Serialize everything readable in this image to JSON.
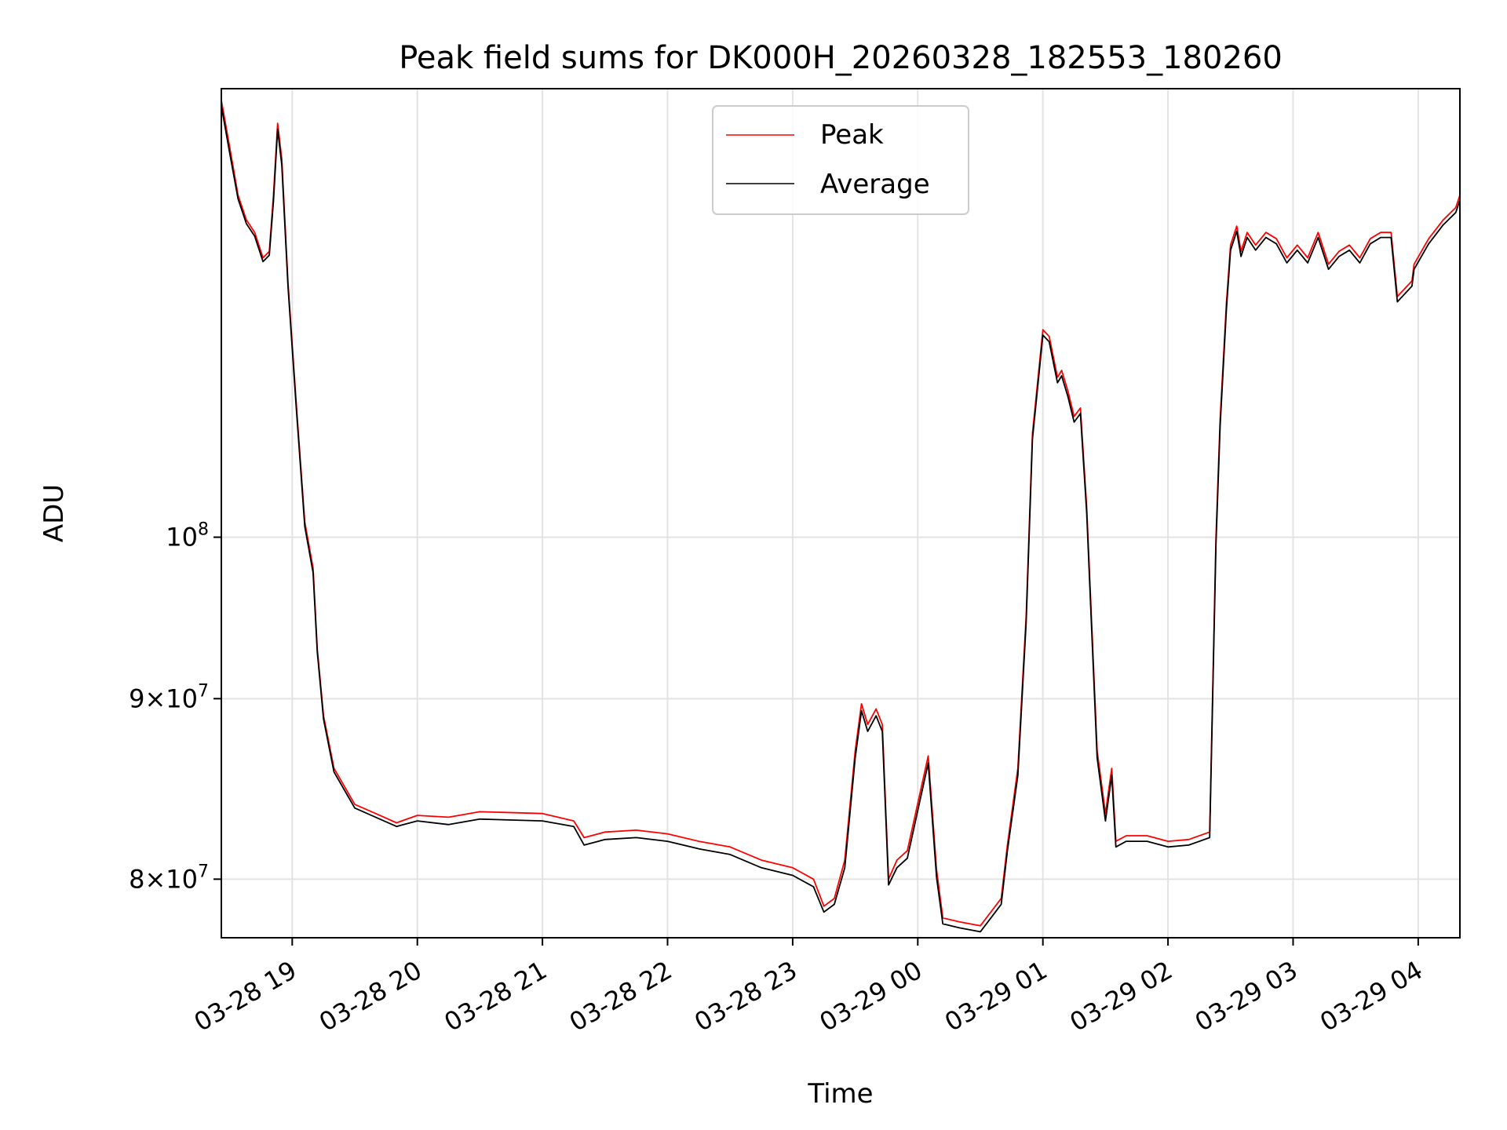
{
  "chart_data": {
    "type": "line",
    "title": "Peak field sums for DK000H_20260328_182553_180260",
    "xlabel": "Time",
    "ylabel": "ADU",
    "yscale": "log",
    "xlim": [
      "03-28 18:26",
      "03-29 04:20"
    ],
    "ylim": [
      77000000,
      134000000
    ],
    "grid": true,
    "legend_position": "top-center",
    "x_ticks": [
      {
        "value": "03-28 19:00",
        "label": "03-28 19"
      },
      {
        "value": "03-28 20:00",
        "label": "03-28 20"
      },
      {
        "value": "03-28 21:00",
        "label": "03-28 21"
      },
      {
        "value": "03-28 22:00",
        "label": "03-28 22"
      },
      {
        "value": "03-28 23:00",
        "label": "03-28 23"
      },
      {
        "value": "03-29 00:00",
        "label": "03-29 00"
      },
      {
        "value": "03-29 01:00",
        "label": "03-29 01"
      },
      {
        "value": "03-29 02:00",
        "label": "03-29 02"
      },
      {
        "value": "03-29 03:00",
        "label": "03-29 03"
      },
      {
        "value": "03-29 04:00",
        "label": "03-29 04"
      }
    ],
    "y_ticks": [
      {
        "value": 80000000,
        "base": "8×10",
        "exp": "7"
      },
      {
        "value": 90000000,
        "base": "9×10",
        "exp": "7"
      },
      {
        "value": 100000000,
        "base": "10",
        "exp": "8"
      }
    ],
    "series": [
      {
        "name": "Peak",
        "color": "#ff0000",
        "x": [
          "03-28 18:26",
          "03-28 18:30",
          "03-28 18:34",
          "03-28 18:38",
          "03-28 18:42",
          "03-28 18:46",
          "03-28 18:49",
          "03-28 18:51",
          "03-28 18:53",
          "03-28 18:55",
          "03-28 18:58",
          "03-28 19:02",
          "03-28 19:06",
          "03-28 19:10",
          "03-28 19:12",
          "03-28 19:15",
          "03-28 19:20",
          "03-28 19:30",
          "03-28 19:40",
          "03-28 19:50",
          "03-28 20:00",
          "03-28 20:15",
          "03-28 20:30",
          "03-28 21:00",
          "03-28 21:15",
          "03-28 21:20",
          "03-28 21:30",
          "03-28 21:45",
          "03-28 22:00",
          "03-28 22:15",
          "03-28 22:30",
          "03-28 22:45",
          "03-28 23:00",
          "03-28 23:10",
          "03-28 23:15",
          "03-28 23:20",
          "03-28 23:25",
          "03-28 23:30",
          "03-28 23:33",
          "03-28 23:36",
          "03-28 23:40",
          "03-28 23:43",
          "03-28 23:46",
          "03-28 23:50",
          "03-28 23:55",
          "03-29 00:05",
          "03-29 00:09",
          "03-29 00:12",
          "03-29 00:20",
          "03-29 00:30",
          "03-29 00:40",
          "03-29 00:43",
          "03-29 00:48",
          "03-29 00:52",
          "03-29 00:55",
          "03-29 01:00",
          "03-29 01:03",
          "03-29 01:07",
          "03-29 01:09",
          "03-29 01:12",
          "03-29 01:15",
          "03-29 01:18",
          "03-29 01:21",
          "03-29 01:26",
          "03-29 01:30",
          "03-29 01:33",
          "03-29 01:35",
          "03-29 01:40",
          "03-29 01:50",
          "03-29 02:00",
          "03-29 02:10",
          "03-29 02:20",
          "03-29 02:23",
          "03-29 02:25",
          "03-29 02:28",
          "03-29 02:30",
          "03-29 02:33",
          "03-29 02:35",
          "03-29 02:38",
          "03-29 02:42",
          "03-29 02:47",
          "03-29 02:52",
          "03-29 02:57",
          "03-29 03:02",
          "03-29 03:07",
          "03-29 03:12",
          "03-29 03:17",
          "03-29 03:22",
          "03-29 03:27",
          "03-29 03:32",
          "03-29 03:37",
          "03-29 03:42",
          "03-29 03:47",
          "03-29 03:50",
          "03-29 03:57",
          "03-29 03:58",
          "03-29 04:05",
          "03-29 04:12",
          "03-29 04:18",
          "03-29 04:20"
        ],
        "values": [
          133000000,
          129000000,
          125000000,
          123000000,
          122000000,
          120000000,
          120500000,
          125000000,
          131000000,
          128000000,
          118000000,
          109000000,
          101000000,
          98000000,
          93000000,
          89000000,
          86000000,
          84000000,
          83500000,
          83000000,
          83400000,
          83300000,
          83600000,
          83500000,
          83100000,
          82200000,
          82500000,
          82600000,
          82400000,
          82000000,
          81700000,
          81000000,
          80600000,
          80000000,
          78600000,
          79000000,
          81000000,
          87000000,
          89700000,
          88500000,
          89400000,
          88500000,
          80000000,
          81000000,
          81500000,
          86700000,
          80500000,
          78000000,
          77800000,
          77600000,
          79000000,
          81800000,
          86000000,
          95000000,
          107000000,
          114500000,
          114000000,
          111000000,
          111500000,
          110000000,
          108200000,
          108800000,
          102000000,
          87000000,
          83500000,
          86000000,
          82000000,
          82300000,
          82300000,
          82000000,
          82100000,
          82500000,
          100000000,
          108000000,
          116500000,
          121000000,
          122500000,
          120500000,
          122000000,
          121000000,
          122000000,
          121500000,
          120000000,
          121000000,
          120000000,
          122000000,
          119500000,
          120500000,
          121000000,
          120000000,
          121500000,
          122000000,
          122000000,
          117000000,
          118200000,
          119500000,
          121500000,
          123000000,
          124000000,
          125000000
        ]
      },
      {
        "name": "Average",
        "color": "#000000",
        "x": [
          "03-28 18:26",
          "03-28 18:30",
          "03-28 18:34",
          "03-28 18:38",
          "03-28 18:42",
          "03-28 18:46",
          "03-28 18:49",
          "03-28 18:51",
          "03-28 18:53",
          "03-28 18:55",
          "03-28 18:58",
          "03-28 19:02",
          "03-28 19:06",
          "03-28 19:10",
          "03-28 19:12",
          "03-28 19:15",
          "03-28 19:20",
          "03-28 19:30",
          "03-28 19:40",
          "03-28 19:50",
          "03-28 20:00",
          "03-28 20:15",
          "03-28 20:30",
          "03-28 21:00",
          "03-28 21:15",
          "03-28 21:20",
          "03-28 21:30",
          "03-28 21:45",
          "03-28 22:00",
          "03-28 22:15",
          "03-28 22:30",
          "03-28 22:45",
          "03-28 23:00",
          "03-28 23:10",
          "03-28 23:15",
          "03-28 23:20",
          "03-28 23:25",
          "03-28 23:30",
          "03-28 23:33",
          "03-28 23:36",
          "03-28 23:40",
          "03-28 23:43",
          "03-28 23:46",
          "03-28 23:50",
          "03-28 23:55",
          "03-29 00:05",
          "03-29 00:09",
          "03-29 00:12",
          "03-29 00:20",
          "03-29 00:30",
          "03-29 00:40",
          "03-29 00:43",
          "03-29 00:48",
          "03-29 00:52",
          "03-29 00:55",
          "03-29 01:00",
          "03-29 01:03",
          "03-29 01:07",
          "03-29 01:09",
          "03-29 01:12",
          "03-29 01:15",
          "03-29 01:18",
          "03-29 01:21",
          "03-29 01:26",
          "03-29 01:30",
          "03-29 01:33",
          "03-29 01:35",
          "03-29 01:40",
          "03-29 01:50",
          "03-29 02:00",
          "03-29 02:10",
          "03-29 02:20",
          "03-29 02:23",
          "03-29 02:25",
          "03-29 02:28",
          "03-29 02:30",
          "03-29 02:33",
          "03-29 02:35",
          "03-29 02:38",
          "03-29 02:42",
          "03-29 02:47",
          "03-29 02:52",
          "03-29 02:57",
          "03-29 03:02",
          "03-29 03:07",
          "03-29 03:12",
          "03-29 03:17",
          "03-29 03:22",
          "03-29 03:27",
          "03-29 03:32",
          "03-29 03:37",
          "03-29 03:42",
          "03-29 03:47",
          "03-29 03:50",
          "03-29 03:57",
          "03-29 03:58",
          "03-29 04:05",
          "03-29 04:12",
          "03-29 04:18",
          "03-29 04:20"
        ],
        "values": [
          132500000,
          128500000,
          124700000,
          122700000,
          121700000,
          119700000,
          120200000,
          124500000,
          130500000,
          127500000,
          117700000,
          108700000,
          100700000,
          97700000,
          92800000,
          88800000,
          85800000,
          83800000,
          83300000,
          82800000,
          83100000,
          82900000,
          83200000,
          83100000,
          82800000,
          81800000,
          82100000,
          82200000,
          82000000,
          81600000,
          81300000,
          80600000,
          80200000,
          79600000,
          78300000,
          78700000,
          80600000,
          86600000,
          89300000,
          88100000,
          89000000,
          88100000,
          79700000,
          80600000,
          81100000,
          86300000,
          80100000,
          77700000,
          77500000,
          77300000,
          78700000,
          81500000,
          85600000,
          94600000,
          106600000,
          114100000,
          113600000,
          110600000,
          111100000,
          109600000,
          107800000,
          108400000,
          101600000,
          86600000,
          83100000,
          85600000,
          81700000,
          82000000,
          82000000,
          81700000,
          81800000,
          82200000,
          99500000,
          107500000,
          116000000,
          120600000,
          122100000,
          120100000,
          121600000,
          120600000,
          121600000,
          121100000,
          119600000,
          120600000,
          119600000,
          121600000,
          119100000,
          120100000,
          120600000,
          119600000,
          121100000,
          121600000,
          121600000,
          116600000,
          117800000,
          119100000,
          121100000,
          122600000,
          123600000,
          124600000
        ]
      }
    ]
  }
}
